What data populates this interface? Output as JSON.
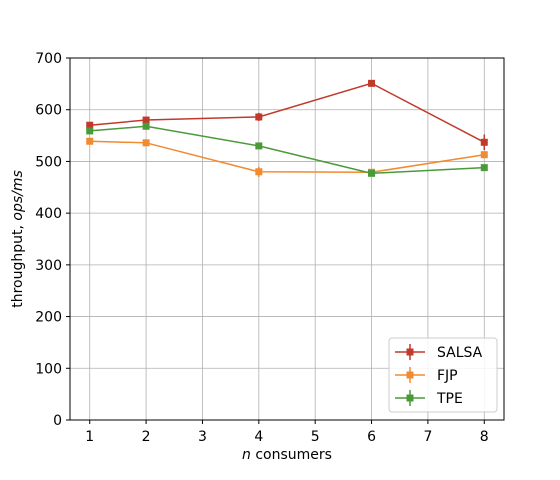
{
  "chart_data": {
    "type": "line",
    "title": "",
    "xlabel_italic": "n",
    "xlabel_rest": " consumers",
    "ylabel_main": "throughput, ",
    "ylabel_italic": "ops/ms",
    "x_ticks": [
      1,
      2,
      3,
      4,
      5,
      6,
      7,
      8
    ],
    "y_ticks": [
      0,
      100,
      200,
      300,
      400,
      500,
      600,
      700
    ],
    "xlim": [
      0.65,
      8.35
    ],
    "ylim": [
      0,
      700
    ],
    "grid": true,
    "legend_position": "bottom-right",
    "series": [
      {
        "name": "SALSA",
        "color": "#c0392b",
        "x": [
          1,
          2,
          4,
          6,
          8
        ],
        "y": [
          570,
          580,
          586,
          651,
          537
        ],
        "err": [
          6,
          5,
          8,
          5,
          15
        ]
      },
      {
        "name": "FJP",
        "color": "#f28a30",
        "x": [
          1,
          2,
          4,
          6,
          8
        ],
        "y": [
          539,
          536,
          480,
          479,
          513
        ],
        "err": [
          4,
          4,
          10,
          6,
          6
        ]
      },
      {
        "name": "TPE",
        "color": "#4a9a3a",
        "x": [
          1,
          2,
          4,
          6,
          8
        ],
        "y": [
          559,
          568,
          530,
          477,
          488
        ],
        "err": [
          5,
          5,
          6,
          4,
          5
        ]
      }
    ]
  }
}
